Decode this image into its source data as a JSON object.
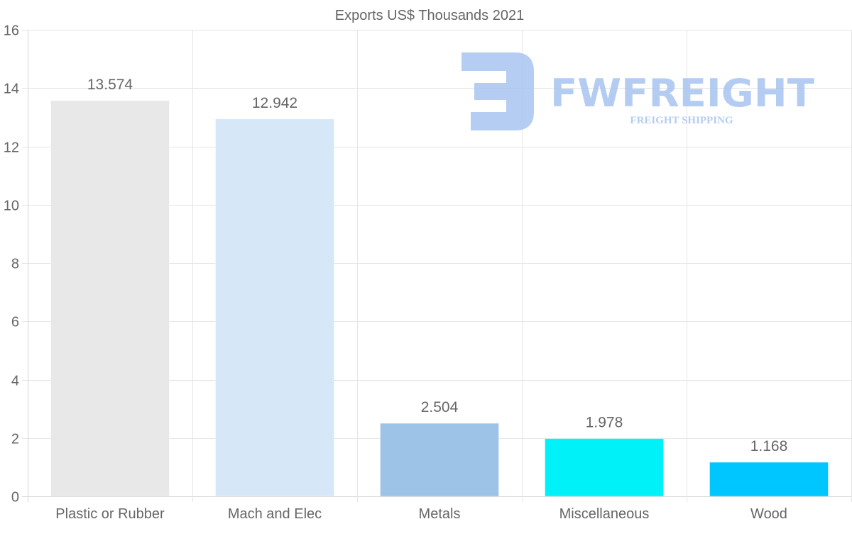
{
  "chart_data": {
    "type": "bar",
    "title": "Exports US$ Thousands 2021",
    "categories": [
      "Plastic or Rubber",
      "Mach and Elec",
      "Metals",
      "Miscellaneous",
      "Wood"
    ],
    "values": [
      13.574,
      12.942,
      2.504,
      1.978,
      1.168
    ],
    "value_labels": [
      "13.574",
      "12.942",
      "2.504",
      "1.978",
      "1.168"
    ],
    "colors": [
      "#e8e8e8",
      "#d6e7f8",
      "#9dc3e6",
      "#00f2f8",
      "#00c6ff"
    ],
    "ylim": [
      0,
      16
    ],
    "yticks": [
      0,
      2,
      4,
      6,
      8,
      10,
      12,
      14,
      16
    ],
    "xlabel": "",
    "ylabel": "",
    "grid": true,
    "legend": "none"
  },
  "watermark": {
    "brand": "FWFREIGHT",
    "tagline": "FREIGHT SHIPPING",
    "color": "#a8c4f0"
  }
}
